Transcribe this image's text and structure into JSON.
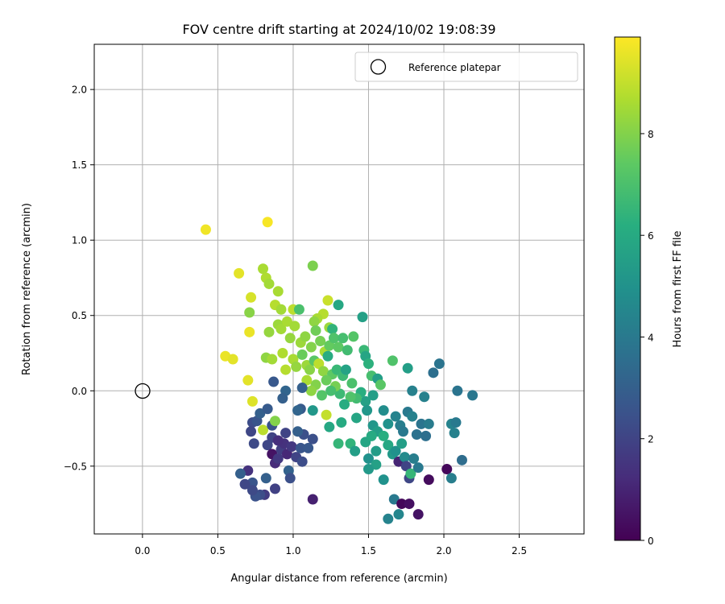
{
  "chart_data": {
    "type": "scatter",
    "title": "FOV centre drift starting at 2024/10/02 19:08:39",
    "xlabel": "Angular distance from reference (arcmin)",
    "ylabel": "Rotation from reference (arcmin)",
    "xlim": [
      -0.32,
      2.93
    ],
    "ylim": [
      -0.95,
      2.3
    ],
    "xticks": [
      0.0,
      0.5,
      1.0,
      1.5,
      2.0,
      2.5
    ],
    "xtick_labels": [
      "0.0",
      "0.5",
      "1.0",
      "1.5",
      "2.0",
      "2.5"
    ],
    "yticks": [
      -0.5,
      0.0,
      0.5,
      1.0,
      1.5,
      2.0
    ],
    "ytick_labels": [
      "−0.5",
      "0.0",
      "0.5",
      "1.0",
      "1.5",
      "2.0"
    ],
    "grid": true,
    "legend": {
      "position": "top-right",
      "entries": [
        "Reference platepar"
      ]
    },
    "reference_point": {
      "x": 0.0,
      "y": 0.0
    },
    "colorbar": {
      "label": "Hours from first FF file",
      "range": [
        0,
        9.9
      ],
      "ticks": [
        0,
        2,
        4,
        6,
        8
      ],
      "tick_labels": [
        "0",
        "2",
        "4",
        "6",
        "8"
      ],
      "colormap": "viridis"
    },
    "points": [
      {
        "x": 0.42,
        "y": 1.07,
        "c": 9.7
      },
      {
        "x": 0.83,
        "y": 1.12,
        "c": 9.8
      },
      {
        "x": 0.64,
        "y": 0.78,
        "c": 9.5
      },
      {
        "x": 0.72,
        "y": 0.62,
        "c": 9.3
      },
      {
        "x": 0.71,
        "y": 0.39,
        "c": 9.6
      },
      {
        "x": 0.55,
        "y": 0.23,
        "c": 9.6
      },
      {
        "x": 0.6,
        "y": 0.21,
        "c": 9.5
      },
      {
        "x": 0.7,
        "y": 0.07,
        "c": 9.5
      },
      {
        "x": 0.73,
        "y": -0.07,
        "c": 9.4
      },
      {
        "x": 0.8,
        "y": 0.81,
        "c": 8.6
      },
      {
        "x": 0.82,
        "y": 0.75,
        "c": 8.7
      },
      {
        "x": 0.84,
        "y": 0.71,
        "c": 8.5
      },
      {
        "x": 0.71,
        "y": 0.52,
        "c": 8.1
      },
      {
        "x": 0.9,
        "y": 0.66,
        "c": 8.6
      },
      {
        "x": 0.88,
        "y": 0.57,
        "c": 8.8
      },
      {
        "x": 0.92,
        "y": 0.54,
        "c": 8.5
      },
      {
        "x": 1.0,
        "y": 0.54,
        "c": 8.9
      },
      {
        "x": 1.04,
        "y": 0.54,
        "c": 7.0
      },
      {
        "x": 1.13,
        "y": 0.83,
        "c": 7.9
      },
      {
        "x": 1.23,
        "y": 0.6,
        "c": 9.1
      },
      {
        "x": 1.2,
        "y": 0.51,
        "c": 8.8
      },
      {
        "x": 1.16,
        "y": 0.48,
        "c": 8.6
      },
      {
        "x": 1.14,
        "y": 0.46,
        "c": 8.2
      },
      {
        "x": 1.24,
        "y": 0.42,
        "c": 8.4
      },
      {
        "x": 1.3,
        "y": 0.57,
        "c": 5.9
      },
      {
        "x": 1.26,
        "y": 0.41,
        "c": 6.4
      },
      {
        "x": 1.46,
        "y": 0.49,
        "c": 5.6
      },
      {
        "x": 0.84,
        "y": 0.39,
        "c": 8.3
      },
      {
        "x": 0.9,
        "y": 0.44,
        "c": 8.4
      },
      {
        "x": 0.92,
        "y": 0.41,
        "c": 8.5
      },
      {
        "x": 0.96,
        "y": 0.46,
        "c": 8.6
      },
      {
        "x": 0.98,
        "y": 0.35,
        "c": 8.3
      },
      {
        "x": 1.01,
        "y": 0.43,
        "c": 8.5
      },
      {
        "x": 1.05,
        "y": 0.32,
        "c": 8.4
      },
      {
        "x": 1.08,
        "y": 0.36,
        "c": 8.2
      },
      {
        "x": 1.12,
        "y": 0.29,
        "c": 8.0
      },
      {
        "x": 1.15,
        "y": 0.4,
        "c": 7.7
      },
      {
        "x": 1.18,
        "y": 0.33,
        "c": 7.8
      },
      {
        "x": 1.21,
        "y": 0.26,
        "c": 8.6
      },
      {
        "x": 1.24,
        "y": 0.3,
        "c": 7.5
      },
      {
        "x": 1.27,
        "y": 0.35,
        "c": 7.1
      },
      {
        "x": 1.3,
        "y": 0.29,
        "c": 7.4
      },
      {
        "x": 1.33,
        "y": 0.35,
        "c": 6.9
      },
      {
        "x": 1.36,
        "y": 0.27,
        "c": 6.8
      },
      {
        "x": 1.4,
        "y": 0.36,
        "c": 7.2
      },
      {
        "x": 0.82,
        "y": 0.22,
        "c": 8.2
      },
      {
        "x": 0.86,
        "y": 0.21,
        "c": 8.5
      },
      {
        "x": 0.93,
        "y": 0.25,
        "c": 8.7
      },
      {
        "x": 0.95,
        "y": 0.14,
        "c": 8.8
      },
      {
        "x": 1.0,
        "y": 0.21,
        "c": 8.6
      },
      {
        "x": 1.02,
        "y": 0.16,
        "c": 8.3
      },
      {
        "x": 1.06,
        "y": 0.24,
        "c": 7.6
      },
      {
        "x": 1.09,
        "y": 0.17,
        "c": 8.4
      },
      {
        "x": 1.11,
        "y": 0.14,
        "c": 8.1
      },
      {
        "x": 1.14,
        "y": 0.2,
        "c": 7.3
      },
      {
        "x": 1.17,
        "y": 0.18,
        "c": 8.9
      },
      {
        "x": 1.2,
        "y": 0.13,
        "c": 8.2
      },
      {
        "x": 1.23,
        "y": 0.23,
        "c": 6.1
      },
      {
        "x": 1.26,
        "y": 0.11,
        "c": 7.4
      },
      {
        "x": 1.29,
        "y": 0.14,
        "c": 6.6
      },
      {
        "x": 1.33,
        "y": 0.1,
        "c": 6.7
      },
      {
        "x": 1.35,
        "y": 0.14,
        "c": 5.7
      },
      {
        "x": 1.39,
        "y": 0.05,
        "c": 7.0
      },
      {
        "x": 1.47,
        "y": 0.27,
        "c": 6.6
      },
      {
        "x": 1.48,
        "y": 0.23,
        "c": 5.8
      },
      {
        "x": 1.5,
        "y": 0.18,
        "c": 6.3
      },
      {
        "x": 1.52,
        "y": 0.1,
        "c": 6.9
      },
      {
        "x": 1.56,
        "y": 0.08,
        "c": 5.5
      },
      {
        "x": 1.58,
        "y": 0.04,
        "c": 7.3
      },
      {
        "x": 1.66,
        "y": 0.2,
        "c": 7.1
      },
      {
        "x": 1.76,
        "y": 0.15,
        "c": 5.5
      },
      {
        "x": 1.79,
        "y": 0.0,
        "c": 4.3
      },
      {
        "x": 1.87,
        "y": -0.04,
        "c": 4.3
      },
      {
        "x": 1.93,
        "y": 0.12,
        "c": 3.6
      },
      {
        "x": 1.97,
        "y": 0.18,
        "c": 3.8
      },
      {
        "x": 2.09,
        "y": 0.0,
        "c": 3.8
      },
      {
        "x": 2.19,
        "y": -0.03,
        "c": 3.9
      },
      {
        "x": 1.53,
        "y": -0.03,
        "c": 5.5
      },
      {
        "x": 1.48,
        "y": -0.07,
        "c": 5.6
      },
      {
        "x": 1.45,
        "y": -0.01,
        "c": 6.2
      },
      {
        "x": 1.42,
        "y": -0.05,
        "c": 6.8
      },
      {
        "x": 1.38,
        "y": -0.04,
        "c": 7.1
      },
      {
        "x": 1.34,
        "y": -0.09,
        "c": 6.1
      },
      {
        "x": 1.31,
        "y": -0.02,
        "c": 6.7
      },
      {
        "x": 1.28,
        "y": 0.03,
        "c": 7.8
      },
      {
        "x": 1.25,
        "y": 0.0,
        "c": 6.9
      },
      {
        "x": 1.22,
        "y": 0.07,
        "c": 7.6
      },
      {
        "x": 1.19,
        "y": -0.03,
        "c": 7.2
      },
      {
        "x": 1.15,
        "y": 0.04,
        "c": 8.0
      },
      {
        "x": 1.12,
        "y": 0.0,
        "c": 8.2
      },
      {
        "x": 1.09,
        "y": 0.07,
        "c": 8.6
      },
      {
        "x": 0.95,
        "y": 0.0,
        "c": 3.2
      },
      {
        "x": 0.93,
        "y": -0.05,
        "c": 3.0
      },
      {
        "x": 0.87,
        "y": 0.06,
        "c": 2.7
      },
      {
        "x": 1.05,
        "y": -0.12,
        "c": 2.8
      },
      {
        "x": 1.03,
        "y": -0.13,
        "c": 3.2
      },
      {
        "x": 1.06,
        "y": 0.02,
        "c": 3.0
      },
      {
        "x": 1.13,
        "y": -0.13,
        "c": 5.2
      },
      {
        "x": 1.22,
        "y": -0.16,
        "c": 9.0
      },
      {
        "x": 1.24,
        "y": -0.24,
        "c": 5.9
      },
      {
        "x": 1.32,
        "y": -0.21,
        "c": 6.0
      },
      {
        "x": 1.42,
        "y": -0.18,
        "c": 5.8
      },
      {
        "x": 1.3,
        "y": -0.35,
        "c": 6.5
      },
      {
        "x": 1.38,
        "y": -0.35,
        "c": 6.4
      },
      {
        "x": 1.41,
        "y": -0.4,
        "c": 5.5
      },
      {
        "x": 1.49,
        "y": -0.13,
        "c": 5.2
      },
      {
        "x": 1.53,
        "y": -0.23,
        "c": 5.2
      },
      {
        "x": 1.56,
        "y": -0.27,
        "c": 5.5
      },
      {
        "x": 1.6,
        "y": -0.13,
        "c": 4.8
      },
      {
        "x": 1.63,
        "y": -0.22,
        "c": 5.0
      },
      {
        "x": 1.68,
        "y": -0.17,
        "c": 4.4
      },
      {
        "x": 1.71,
        "y": -0.23,
        "c": 4.2
      },
      {
        "x": 1.73,
        "y": -0.27,
        "c": 4.0
      },
      {
        "x": 1.76,
        "y": -0.14,
        "c": 4.0
      },
      {
        "x": 1.79,
        "y": -0.17,
        "c": 4.3
      },
      {
        "x": 1.82,
        "y": -0.29,
        "c": 3.7
      },
      {
        "x": 1.85,
        "y": -0.22,
        "c": 3.8
      },
      {
        "x": 1.88,
        "y": -0.3,
        "c": 3.6
      },
      {
        "x": 1.9,
        "y": -0.22,
        "c": 4.1
      },
      {
        "x": 2.05,
        "y": -0.22,
        "c": 4.4
      },
      {
        "x": 2.07,
        "y": -0.28,
        "c": 4.3
      },
      {
        "x": 2.08,
        "y": -0.21,
        "c": 4.0
      },
      {
        "x": 2.12,
        "y": -0.46,
        "c": 3.5
      },
      {
        "x": 1.48,
        "y": -0.34,
        "c": 5.8
      },
      {
        "x": 1.52,
        "y": -0.3,
        "c": 6.0
      },
      {
        "x": 1.55,
        "y": -0.4,
        "c": 5.4
      },
      {
        "x": 1.5,
        "y": -0.45,
        "c": 5.0
      },
      {
        "x": 1.55,
        "y": -0.49,
        "c": 5.6
      },
      {
        "x": 1.6,
        "y": -0.3,
        "c": 6.2
      },
      {
        "x": 1.63,
        "y": -0.36,
        "c": 5.9
      },
      {
        "x": 1.66,
        "y": -0.42,
        "c": 5.3
      },
      {
        "x": 1.68,
        "y": -0.4,
        "c": 5.0
      },
      {
        "x": 1.7,
        "y": -0.47,
        "c": 1.0
      },
      {
        "x": 1.72,
        "y": -0.35,
        "c": 5.5
      },
      {
        "x": 1.74,
        "y": -0.44,
        "c": 4.7
      },
      {
        "x": 1.75,
        "y": -0.5,
        "c": 2.0
      },
      {
        "x": 1.77,
        "y": -0.58,
        "c": 2.1
      },
      {
        "x": 1.78,
        "y": -0.55,
        "c": 6.5
      },
      {
        "x": 1.8,
        "y": -0.45,
        "c": 4.2
      },
      {
        "x": 1.83,
        "y": -0.51,
        "c": 4.0
      },
      {
        "x": 1.5,
        "y": -0.52,
        "c": 5.3
      },
      {
        "x": 1.6,
        "y": -0.59,
        "c": 5.0
      },
      {
        "x": 1.67,
        "y": -0.72,
        "c": 4.0
      },
      {
        "x": 1.72,
        "y": -0.75,
        "c": 0.2
      },
      {
        "x": 1.77,
        "y": -0.75,
        "c": 0.4
      },
      {
        "x": 1.7,
        "y": -0.82,
        "c": 4.5
      },
      {
        "x": 1.63,
        "y": -0.85,
        "c": 4.4
      },
      {
        "x": 1.83,
        "y": -0.82,
        "c": 0.5
      },
      {
        "x": 1.9,
        "y": -0.59,
        "c": 0.3
      },
      {
        "x": 2.02,
        "y": -0.52,
        "c": 0.2
      },
      {
        "x": 2.05,
        "y": -0.58,
        "c": 4.2
      },
      {
        "x": 0.73,
        "y": -0.21,
        "c": 2.3
      },
      {
        "x": 0.72,
        "y": -0.27,
        "c": 2.1
      },
      {
        "x": 0.74,
        "y": -0.35,
        "c": 2.2
      },
      {
        "x": 0.76,
        "y": -0.2,
        "c": 2.6
      },
      {
        "x": 0.78,
        "y": -0.15,
        "c": 3.0
      },
      {
        "x": 0.8,
        "y": -0.26,
        "c": 8.9
      },
      {
        "x": 0.83,
        "y": -0.12,
        "c": 2.8
      },
      {
        "x": 0.86,
        "y": -0.23,
        "c": 2.5
      },
      {
        "x": 0.88,
        "y": -0.2,
        "c": 8.0
      },
      {
        "x": 0.86,
        "y": -0.31,
        "c": 2.0
      },
      {
        "x": 0.83,
        "y": -0.36,
        "c": 2.1
      },
      {
        "x": 0.86,
        "y": -0.42,
        "c": 0.5
      },
      {
        "x": 0.88,
        "y": -0.48,
        "c": 1.2
      },
      {
        "x": 0.9,
        "y": -0.45,
        "c": 1.6
      },
      {
        "x": 0.92,
        "y": -0.39,
        "c": 1.8
      },
      {
        "x": 0.94,
        "y": -0.35,
        "c": 1.4
      },
      {
        "x": 0.96,
        "y": -0.42,
        "c": 1.1
      },
      {
        "x": 0.99,
        "y": -0.37,
        "c": 1.6
      },
      {
        "x": 1.02,
        "y": -0.44,
        "c": 2.0
      },
      {
        "x": 1.05,
        "y": -0.38,
        "c": 2.6
      },
      {
        "x": 1.07,
        "y": -0.29,
        "c": 2.4
      },
      {
        "x": 1.1,
        "y": -0.38,
        "c": 2.7
      },
      {
        "x": 1.13,
        "y": -0.32,
        "c": 2.4
      },
      {
        "x": 0.9,
        "y": -0.33,
        "c": 1.3
      },
      {
        "x": 0.95,
        "y": -0.28,
        "c": 2.0
      },
      {
        "x": 1.03,
        "y": -0.27,
        "c": 3.0
      },
      {
        "x": 1.06,
        "y": -0.47,
        "c": 2.3
      },
      {
        "x": 0.97,
        "y": -0.53,
        "c": 3.1
      },
      {
        "x": 0.98,
        "y": -0.58,
        "c": 2.4
      },
      {
        "x": 0.82,
        "y": -0.58,
        "c": 3.0
      },
      {
        "x": 0.88,
        "y": -0.65,
        "c": 1.9
      },
      {
        "x": 0.81,
        "y": -0.69,
        "c": 1.7
      },
      {
        "x": 0.78,
        "y": -0.69,
        "c": 2.3
      },
      {
        "x": 0.75,
        "y": -0.7,
        "c": 2.5
      },
      {
        "x": 0.73,
        "y": -0.61,
        "c": 2.6
      },
      {
        "x": 0.73,
        "y": -0.66,
        "c": 2.2
      },
      {
        "x": 0.7,
        "y": -0.53,
        "c": 1.4
      },
      {
        "x": 0.65,
        "y": -0.55,
        "c": 3.0
      },
      {
        "x": 0.68,
        "y": -0.62,
        "c": 2.1
      },
      {
        "x": 1.13,
        "y": -0.72,
        "c": 0.9
      }
    ]
  }
}
